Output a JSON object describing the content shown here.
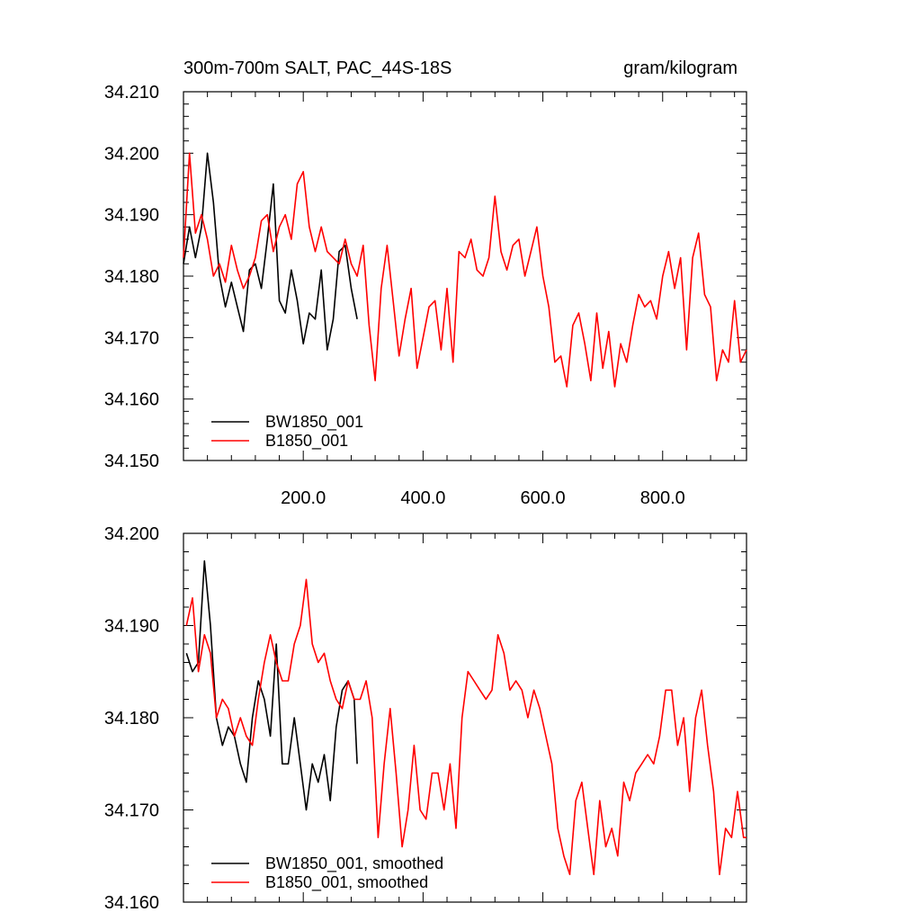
{
  "header": {
    "left": "300m-700m SALT, PAC_44S-18S",
    "right": "gram/kilogram"
  },
  "colors": {
    "bw": "#000000",
    "b": "#ff0000"
  },
  "chart_data": [
    {
      "type": "line",
      "title": "300m-700m SALT, PAC_44S-18S",
      "units": "gram/kilogram",
      "xlim": [
        0,
        940
      ],
      "ylim": [
        34.15,
        34.21
      ],
      "grid": false,
      "legend_position": "bottom-left",
      "yticks": [
        "34.150",
        "34.160",
        "34.170",
        "34.180",
        "34.190",
        "34.200",
        "34.210"
      ],
      "xticks": [
        "200.0",
        "400.0",
        "600.0",
        "800.0"
      ],
      "legend": [
        "BW1850_001",
        "B1850_001"
      ],
      "series": [
        {
          "name": "BW1850_001",
          "color": "#000000",
          "x": [
            0,
            10,
            20,
            30,
            40,
            50,
            60,
            70,
            80,
            90,
            100,
            110,
            120,
            130,
            140,
            150,
            160,
            170,
            180,
            190,
            200,
            210,
            220,
            230,
            240,
            250,
            260,
            270,
            280,
            290
          ],
          "values": [
            34.182,
            34.188,
            34.183,
            34.188,
            34.2,
            34.192,
            34.18,
            34.175,
            34.179,
            34.175,
            34.171,
            34.181,
            34.182,
            34.178,
            34.186,
            34.195,
            34.176,
            34.174,
            34.181,
            34.176,
            34.169,
            34.174,
            34.173,
            34.181,
            34.168,
            34.173,
            34.184,
            34.185,
            34.178,
            34.173
          ]
        },
        {
          "name": "B1850_001",
          "color": "#ff0000",
          "x": [
            0,
            10,
            20,
            30,
            40,
            50,
            60,
            70,
            80,
            90,
            100,
            110,
            120,
            130,
            140,
            150,
            160,
            170,
            180,
            190,
            200,
            210,
            220,
            230,
            240,
            250,
            260,
            270,
            280,
            290,
            300,
            310,
            320,
            330,
            340,
            350,
            360,
            370,
            380,
            390,
            400,
            410,
            420,
            430,
            440,
            450,
            460,
            470,
            480,
            490,
            500,
            510,
            520,
            530,
            540,
            550,
            560,
            570,
            580,
            590,
            600,
            610,
            620,
            630,
            640,
            650,
            660,
            670,
            680,
            690,
            700,
            710,
            720,
            730,
            740,
            750,
            760,
            770,
            780,
            790,
            800,
            810,
            820,
            830,
            840,
            850,
            860,
            870,
            880,
            890,
            900,
            910,
            920,
            930,
            940
          ],
          "values": [
            34.183,
            34.2,
            34.187,
            34.19,
            34.186,
            34.18,
            34.182,
            34.179,
            34.185,
            34.181,
            34.178,
            34.18,
            34.183,
            34.189,
            34.19,
            34.184,
            34.188,
            34.19,
            34.186,
            34.195,
            34.197,
            34.188,
            34.184,
            34.188,
            34.184,
            34.183,
            34.182,
            34.186,
            34.182,
            34.18,
            34.185,
            34.172,
            34.163,
            34.178,
            34.185,
            34.176,
            34.167,
            34.173,
            34.178,
            34.165,
            34.17,
            34.175,
            34.176,
            34.168,
            34.178,
            34.166,
            34.184,
            34.183,
            34.186,
            34.181,
            34.18,
            34.183,
            34.193,
            34.184,
            34.181,
            34.185,
            34.186,
            34.18,
            34.184,
            34.188,
            34.18,
            34.175,
            34.166,
            34.167,
            34.162,
            34.172,
            34.174,
            34.169,
            34.163,
            34.174,
            34.165,
            34.171,
            34.162,
            34.169,
            34.166,
            34.172,
            34.177,
            34.175,
            34.176,
            34.173,
            34.18,
            34.184,
            34.178,
            34.183,
            34.168,
            34.183,
            34.187,
            34.177,
            34.175,
            34.163,
            34.168,
            34.166,
            34.176,
            34.166,
            34.168
          ]
        }
      ]
    },
    {
      "type": "line",
      "xlim": [
        0,
        940
      ],
      "ylim": [
        34.16,
        34.2
      ],
      "grid": false,
      "legend_position": "bottom-left",
      "yticks": [
        "34.160",
        "34.170",
        "34.180",
        "34.190",
        "34.200"
      ],
      "legend": [
        "BW1850_001, smoothed",
        "B1850_001, smoothed"
      ],
      "series": [
        {
          "name": "BW1850_001, smoothed",
          "color": "#000000",
          "x": [
            5,
            15,
            25,
            35,
            45,
            55,
            65,
            75,
            85,
            95,
            105,
            115,
            125,
            135,
            145,
            155,
            165,
            175,
            185,
            195,
            205,
            215,
            225,
            235,
            245,
            255,
            265,
            275,
            285,
            290
          ],
          "values": [
            34.187,
            34.185,
            34.186,
            34.197,
            34.19,
            34.18,
            34.177,
            34.179,
            34.178,
            34.175,
            34.173,
            34.18,
            34.184,
            34.182,
            34.178,
            34.188,
            34.175,
            34.175,
            34.18,
            34.175,
            34.17,
            34.175,
            34.173,
            34.176,
            34.171,
            34.179,
            34.183,
            34.184,
            34.182,
            34.175
          ]
        },
        {
          "name": "B1850_001, smoothed",
          "color": "#ff0000",
          "x": [
            5,
            15,
            25,
            35,
            45,
            55,
            65,
            75,
            85,
            95,
            105,
            115,
            125,
            135,
            145,
            155,
            165,
            175,
            185,
            195,
            205,
            215,
            225,
            235,
            245,
            255,
            265,
            275,
            285,
            295,
            305,
            315,
            325,
            335,
            345,
            355,
            365,
            375,
            385,
            395,
            405,
            415,
            425,
            435,
            445,
            455,
            465,
            475,
            485,
            495,
            505,
            515,
            525,
            535,
            545,
            555,
            565,
            575,
            585,
            595,
            605,
            615,
            625,
            635,
            645,
            655,
            665,
            675,
            685,
            695,
            705,
            715,
            725,
            735,
            745,
            755,
            765,
            775,
            785,
            795,
            805,
            815,
            825,
            835,
            845,
            855,
            865,
            875,
            885,
            895,
            905,
            915,
            925,
            935,
            940
          ],
          "values": [
            34.19,
            34.193,
            34.185,
            34.189,
            34.187,
            34.18,
            34.182,
            34.181,
            34.178,
            34.18,
            34.178,
            34.177,
            34.182,
            34.186,
            34.189,
            34.186,
            34.184,
            34.184,
            34.188,
            34.19,
            34.195,
            34.188,
            34.186,
            34.187,
            34.184,
            34.182,
            34.181,
            34.184,
            34.182,
            34.182,
            34.184,
            34.18,
            34.167,
            34.175,
            34.181,
            34.174,
            34.166,
            34.17,
            34.177,
            34.17,
            34.169,
            34.174,
            34.174,
            34.17,
            34.175,
            34.168,
            34.18,
            34.185,
            34.184,
            34.183,
            34.182,
            34.183,
            34.189,
            34.187,
            34.183,
            34.184,
            34.183,
            34.18,
            34.183,
            34.181,
            34.178,
            34.175,
            34.168,
            34.165,
            34.163,
            34.171,
            34.173,
            34.168,
            34.163,
            34.171,
            34.166,
            34.168,
            34.165,
            34.173,
            34.171,
            34.174,
            34.175,
            34.176,
            34.175,
            34.178,
            34.183,
            34.183,
            34.177,
            34.18,
            34.172,
            34.18,
            34.183,
            34.177,
            34.172,
            34.163,
            34.168,
            34.167,
            34.172,
            34.167,
            34.167
          ]
        }
      ]
    }
  ]
}
